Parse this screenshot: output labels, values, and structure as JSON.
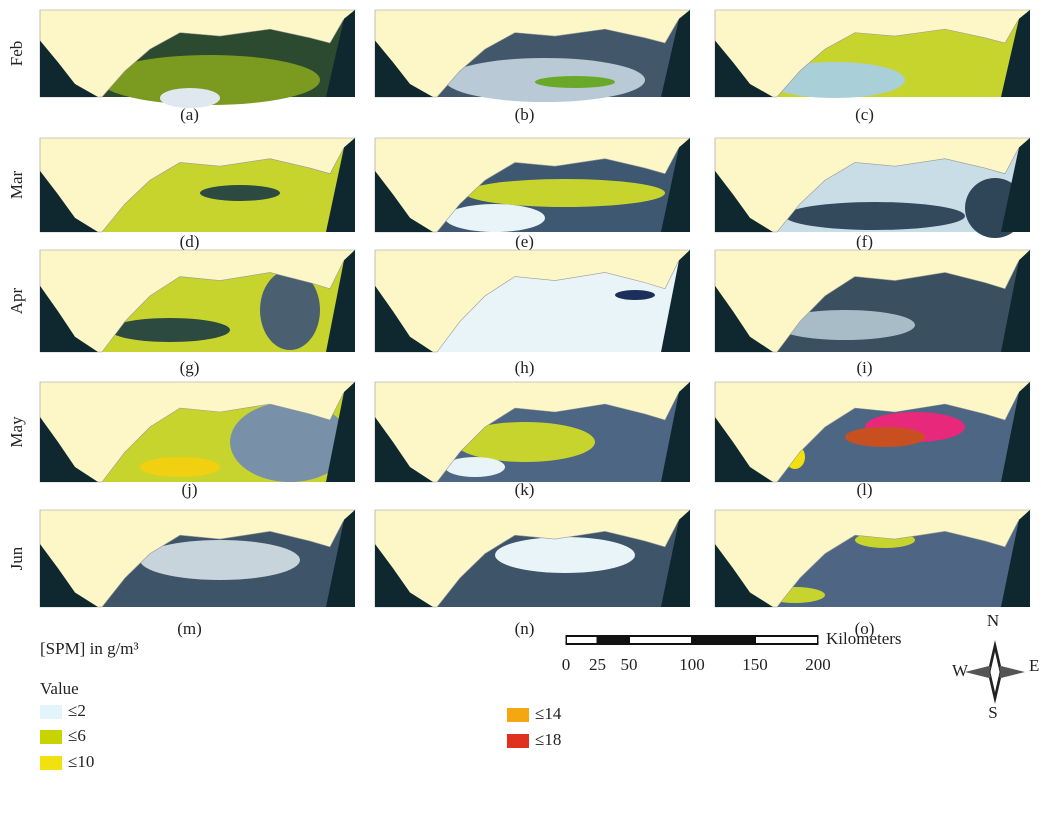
{
  "row_labels": [
    "Feb",
    "Mar",
    "Apr",
    "May",
    "Jun"
  ],
  "panels": [
    "(a)",
    "(b)",
    "(c)",
    "(d)",
    "(e)",
    "(f)",
    "(g)",
    "(h)",
    "(i)",
    "(j)",
    "(k)",
    "(l)",
    "(m)",
    "(n)",
    "(o)"
  ],
  "legend": {
    "title": "[SPM] in g/m³",
    "subtitle": "Value",
    "items": [
      {
        "label": "≤2",
        "color": "#e3f5fb"
      },
      {
        "label": "≤6",
        "color": "#c8d400"
      },
      {
        "label": "≤10",
        "color": "#f3e10f"
      },
      {
        "label": "≤14",
        "color": "#f5a712"
      },
      {
        "label": "≤18",
        "color": "#e0301f"
      }
    ]
  },
  "scale_bar": {
    "unit": "Kilometers",
    "ticks": [
      0,
      25,
      50,
      100,
      150,
      200
    ]
  },
  "compass": {
    "north": "N",
    "south": "S",
    "east": "E",
    "west": "W"
  }
}
